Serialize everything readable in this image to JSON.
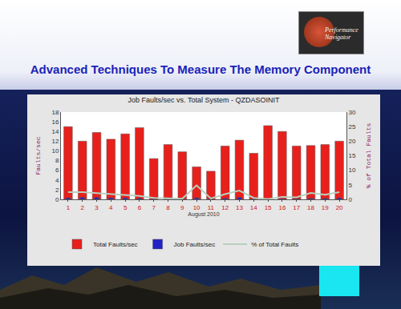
{
  "slide": {
    "title": "Advanced Techniques To Measure The Memory Component",
    "logo": "Performance Navigator"
  },
  "chart_data": {
    "type": "bar",
    "title": "Job Faults/sec vs. Total System - QZDASOINIT",
    "x_label": "August 2010",
    "y_label": "Faults/sec",
    "y2_label": "% of Total Faults",
    "categories": [
      "1",
      "2",
      "3",
      "4",
      "5",
      "6",
      "7",
      "8",
      "9",
      "10",
      "11",
      "12",
      "13",
      "14",
      "15",
      "16",
      "17",
      "18",
      "19",
      "20"
    ],
    "series": [
      {
        "name": "Total Faults/sec",
        "type": "bar",
        "color": "#e8201c",
        "values": [
          15,
          12,
          13.8,
          12.4,
          13.5,
          14.8,
          8.4,
          11.3,
          9.8,
          6.7,
          5.8,
          11,
          12.2,
          9.5,
          15.2,
          14,
          11,
          11.1,
          11.3,
          12
        ]
      },
      {
        "name": "Job Faults/sec",
        "type": "bar",
        "color": "#2222c8",
        "values": [
          0.3,
          0.4,
          0.4,
          0.3,
          0.3,
          0.2,
          0.1,
          0.1,
          0.1,
          0.3,
          0.1,
          0.2,
          0.4,
          0.1,
          0.1,
          0.1,
          0.1,
          0.2,
          0.2,
          0.3
        ]
      },
      {
        "name": "% of Total Faults",
        "type": "line",
        "axis": "y2",
        "color": "#b8d0c0",
        "values": [
          2.5,
          2.5,
          2.1,
          1.8,
          1.5,
          1.2,
          0.5,
          0.3,
          0.2,
          4.8,
          0.3,
          1.8,
          3.0,
          0.5,
          0.1,
          0.8,
          0.7,
          2.2,
          1.6,
          2.5
        ]
      }
    ],
    "ylim": [
      0,
      18
    ],
    "yticks": [
      0,
      2,
      4,
      6,
      8,
      10,
      12,
      14,
      16,
      18
    ],
    "y2lim": [
      0,
      30
    ],
    "y2ticks": [
      0,
      5,
      10,
      15,
      20,
      25,
      30
    ],
    "grid": false,
    "legend": "bottom"
  }
}
